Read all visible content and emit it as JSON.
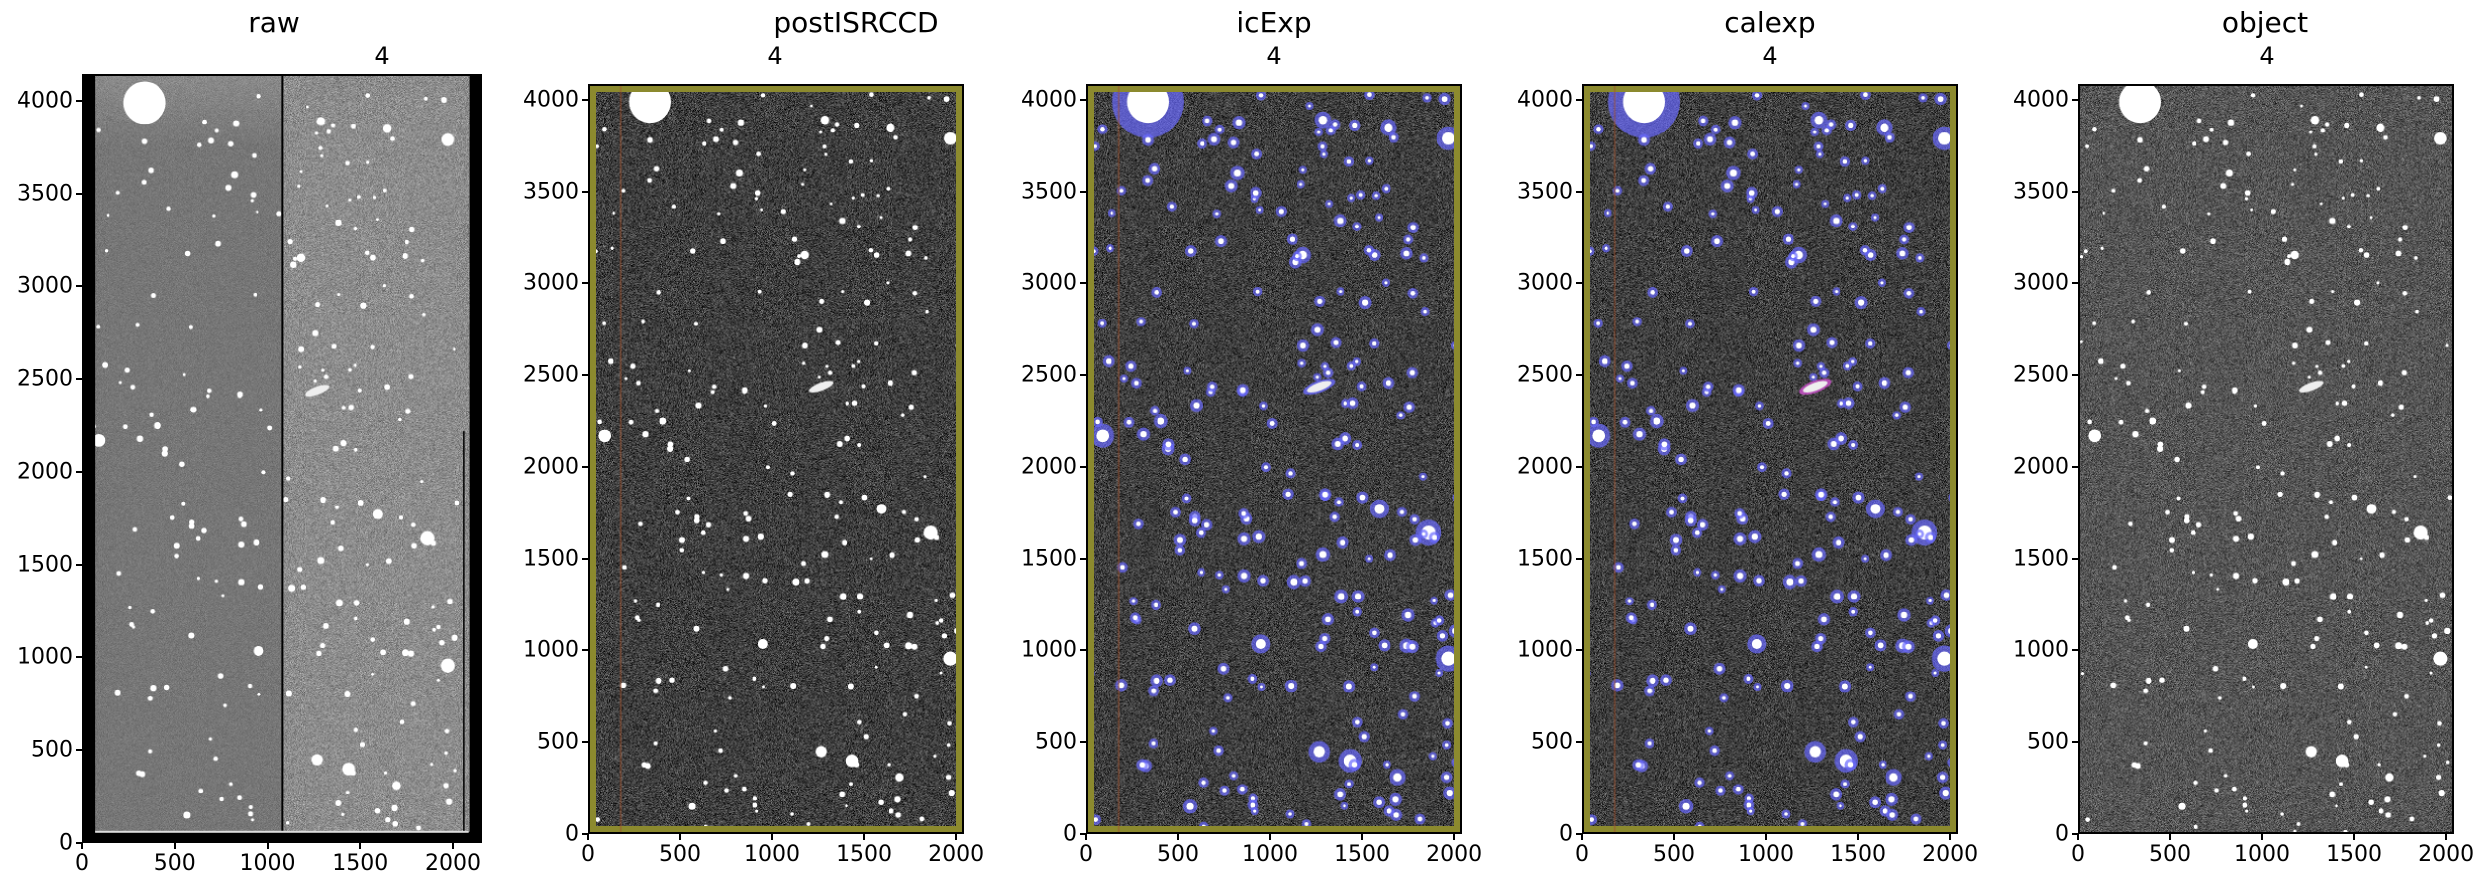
{
  "figure": {
    "panels": [
      {
        "id": "raw",
        "title": "raw",
        "subtitle": "4",
        "xlim": [
          0,
          2156
        ],
        "ylim": [
          0,
          4145
        ],
        "xticks": [
          0,
          500,
          1000,
          1500,
          2000
        ],
        "yticks": [
          0,
          500,
          1000,
          1500,
          2000,
          2500,
          3000,
          3500,
          4000
        ],
        "style": "raw"
      },
      {
        "id": "postISRCCD",
        "title": "postISRCCD",
        "subtitle": "4",
        "xlim": [
          0,
          2043
        ],
        "ylim": [
          0,
          4087
        ],
        "xticks": [
          0,
          500,
          1000,
          1500,
          2000
        ],
        "yticks": [
          0,
          500,
          1000,
          1500,
          2000,
          2500,
          3000,
          3500,
          4000
        ],
        "style": "processed"
      },
      {
        "id": "icExp",
        "title": "icExp",
        "subtitle": "4",
        "xlim": [
          0,
          2043
        ],
        "ylim": [
          0,
          4087
        ],
        "xticks": [
          0,
          500,
          1000,
          1500,
          2000
        ],
        "yticks": [
          0,
          500,
          1000,
          1500,
          2000,
          2500,
          3000,
          3500,
          4000
        ],
        "style": "detected"
      },
      {
        "id": "calexp",
        "title": "calexp",
        "subtitle": "4",
        "xlim": [
          0,
          2043
        ],
        "ylim": [
          0,
          4087
        ],
        "xticks": [
          0,
          500,
          1000,
          1500,
          2000
        ],
        "yticks": [
          0,
          500,
          1000,
          1500,
          2000,
          2500,
          3000,
          3500,
          4000
        ],
        "style": "calibrated"
      },
      {
        "id": "object",
        "title": "object",
        "subtitle": "4",
        "xlim": [
          0,
          2043
        ],
        "ylim": [
          0,
          4087
        ],
        "xticks": [
          0,
          500,
          1000,
          1500,
          2000
        ],
        "yticks": [
          0,
          500,
          1000,
          1500,
          2000,
          2500,
          3000,
          3500,
          4000
        ],
        "style": "coadd"
      }
    ],
    "colors": {
      "mask_border": "#8c8a2e",
      "detected_mask": "#6a6aff",
      "galaxy_mask": "#d050d0",
      "bad_column": "#a0522d"
    }
  }
}
